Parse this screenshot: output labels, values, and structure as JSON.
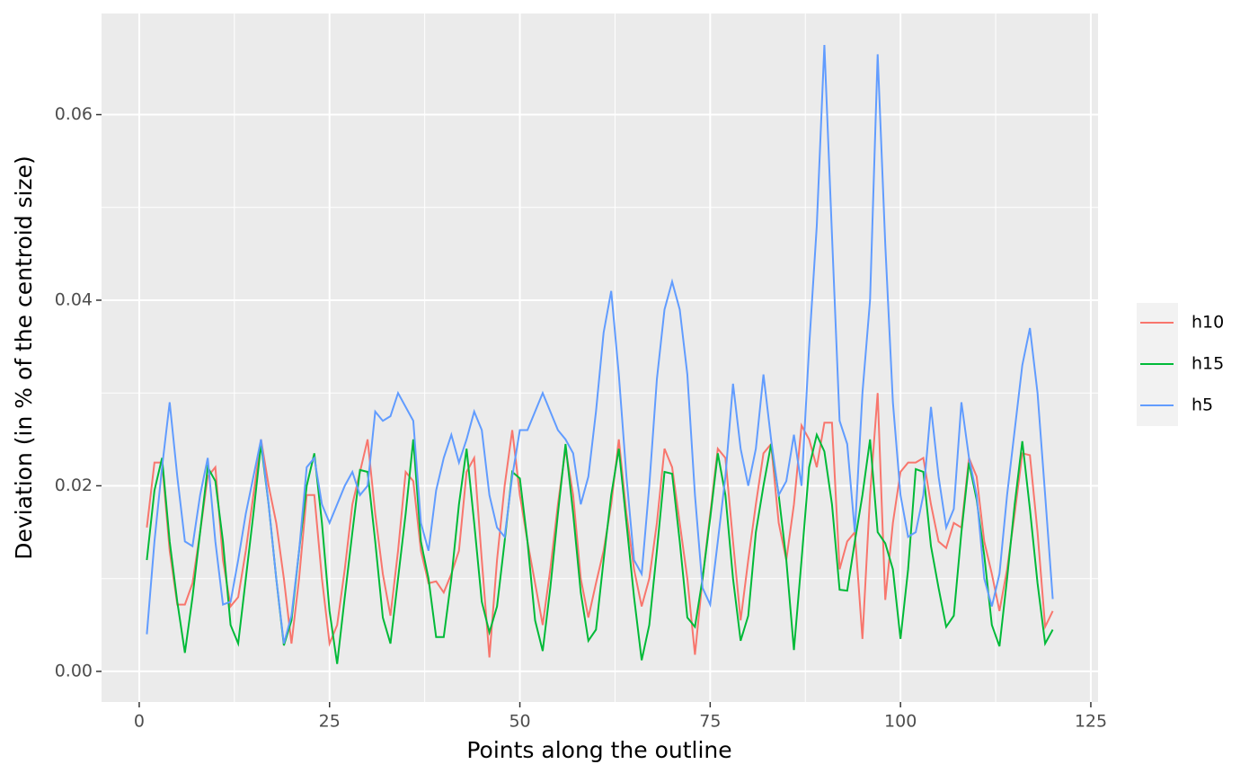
{
  "chart_data": {
    "type": "line",
    "x_label": "Points along the outline",
    "y_label": "Deviation (in % of the centroid size)",
    "x": [
      1,
      2,
      3,
      4,
      5,
      6,
      7,
      8,
      9,
      10,
      11,
      12,
      13,
      14,
      15,
      16,
      17,
      18,
      19,
      20,
      21,
      22,
      23,
      24,
      25,
      26,
      27,
      28,
      29,
      30,
      31,
      32,
      33,
      34,
      35,
      36,
      37,
      38,
      39,
      40,
      41,
      42,
      43,
      44,
      45,
      46,
      47,
      48,
      49,
      50,
      51,
      52,
      53,
      54,
      55,
      56,
      57,
      58,
      59,
      60,
      61,
      62,
      63,
      64,
      65,
      66,
      67,
      68,
      69,
      70,
      71,
      72,
      73,
      74,
      75,
      76,
      77,
      78,
      79,
      80,
      81,
      82,
      83,
      84,
      85,
      86,
      87,
      88,
      89,
      90,
      91,
      92,
      93,
      94,
      95,
      96,
      97,
      98,
      99,
      100,
      101,
      102,
      103,
      104,
      105,
      106,
      107,
      108,
      109,
      110,
      111,
      112,
      113,
      114,
      115,
      116,
      117,
      118,
      119,
      120
    ],
    "series": [
      {
        "name": "h10",
        "color": "#F8766D",
        "values": [
          0.0155,
          0.0225,
          0.0225,
          0.013,
          0.0072,
          0.0072,
          0.0095,
          0.015,
          0.021,
          0.022,
          0.012,
          0.007,
          0.008,
          0.013,
          0.019,
          0.025,
          0.02,
          0.016,
          0.01,
          0.003,
          0.01,
          0.019,
          0.019,
          0.01,
          0.003,
          0.005,
          0.011,
          0.018,
          0.0215,
          0.025,
          0.017,
          0.0105,
          0.006,
          0.013,
          0.0215,
          0.0205,
          0.013,
          0.0095,
          0.0097,
          0.0085,
          0.0105,
          0.013,
          0.0215,
          0.023,
          0.012,
          0.0015,
          0.012,
          0.02,
          0.026,
          0.019,
          0.014,
          0.0095,
          0.005,
          0.011,
          0.018,
          0.024,
          0.019,
          0.01,
          0.0058,
          0.0095,
          0.013,
          0.018,
          0.025,
          0.017,
          0.011,
          0.007,
          0.01,
          0.016,
          0.024,
          0.022,
          0.016,
          0.01,
          0.0018,
          0.01,
          0.017,
          0.024,
          0.023,
          0.014,
          0.0055,
          0.012,
          0.018,
          0.0235,
          0.0245,
          0.016,
          0.012,
          0.018,
          0.0265,
          0.025,
          0.022,
          0.0268,
          0.0268,
          0.011,
          0.014,
          0.015,
          0.0035,
          0.019,
          0.03,
          0.0077,
          0.016,
          0.0215,
          0.0225,
          0.0225,
          0.023,
          0.018,
          0.014,
          0.0133,
          0.016,
          0.0155,
          0.023,
          0.021,
          0.014,
          0.0105,
          0.0065,
          0.011,
          0.017,
          0.0235,
          0.0233,
          0.015,
          0.0048,
          0.0065
        ]
      },
      {
        "name": "h15",
        "color": "#00BA38",
        "values": [
          0.012,
          0.0195,
          0.023,
          0.014,
          0.0075,
          0.002,
          0.008,
          0.015,
          0.022,
          0.0205,
          0.014,
          0.005,
          0.003,
          0.01,
          0.017,
          0.0245,
          0.018,
          0.01,
          0.0028,
          0.0055,
          0.013,
          0.02,
          0.0235,
          0.016,
          0.0065,
          0.0008,
          0.008,
          0.015,
          0.0217,
          0.0215,
          0.014,
          0.0058,
          0.003,
          0.01,
          0.017,
          0.025,
          0.014,
          0.01,
          0.0037,
          0.0037,
          0.01,
          0.018,
          0.024,
          0.016,
          0.0075,
          0.0042,
          0.007,
          0.014,
          0.0215,
          0.0208,
          0.014,
          0.0055,
          0.0022,
          0.009,
          0.017,
          0.0245,
          0.017,
          0.0085,
          0.0033,
          0.0045,
          0.012,
          0.019,
          0.024,
          0.016,
          0.008,
          0.0012,
          0.005,
          0.013,
          0.0215,
          0.0213,
          0.014,
          0.0058,
          0.0048,
          0.01,
          0.0165,
          0.0235,
          0.019,
          0.01,
          0.0033,
          0.006,
          0.015,
          0.02,
          0.0245,
          0.019,
          0.012,
          0.0023,
          0.012,
          0.022,
          0.0255,
          0.0237,
          0.018,
          0.0088,
          0.0087,
          0.014,
          0.019,
          0.025,
          0.015,
          0.0138,
          0.011,
          0.0035,
          0.011,
          0.0218,
          0.0215,
          0.0135,
          0.009,
          0.0048,
          0.006,
          0.015,
          0.0225,
          0.0185,
          0.0125,
          0.005,
          0.0027,
          0.01,
          0.018,
          0.0248,
          0.0175,
          0.0095,
          0.003,
          0.0045
        ]
      },
      {
        "name": "h5",
        "color": "#619CFF",
        "values": [
          0.004,
          0.014,
          0.022,
          0.029,
          0.021,
          0.014,
          0.0135,
          0.019,
          0.023,
          0.014,
          0.0072,
          0.0075,
          0.012,
          0.017,
          0.021,
          0.025,
          0.018,
          0.01,
          0.003,
          0.006,
          0.013,
          0.022,
          0.023,
          0.018,
          0.016,
          0.018,
          0.02,
          0.0215,
          0.019,
          0.02,
          0.028,
          0.027,
          0.0275,
          0.03,
          0.0285,
          0.027,
          0.016,
          0.013,
          0.0195,
          0.023,
          0.0255,
          0.0225,
          0.025,
          0.028,
          0.026,
          0.019,
          0.0155,
          0.0145,
          0.021,
          0.026,
          0.026,
          0.028,
          0.03,
          0.028,
          0.026,
          0.025,
          0.0235,
          0.018,
          0.021,
          0.028,
          0.0365,
          0.041,
          0.032,
          0.021,
          0.012,
          0.0105,
          0.02,
          0.0315,
          0.039,
          0.042,
          0.039,
          0.032,
          0.019,
          0.009,
          0.0072,
          0.014,
          0.021,
          0.031,
          0.024,
          0.02,
          0.024,
          0.032,
          0.025,
          0.019,
          0.0205,
          0.0255,
          0.02,
          0.035,
          0.048,
          0.0675,
          0.047,
          0.027,
          0.0245,
          0.015,
          0.03,
          0.04,
          0.0665,
          0.046,
          0.029,
          0.019,
          0.0145,
          0.015,
          0.019,
          0.0285,
          0.021,
          0.0155,
          0.0175,
          0.029,
          0.023,
          0.019,
          0.01,
          0.007,
          0.0105,
          0.019,
          0.026,
          0.033,
          0.037,
          0.03,
          0.019,
          0.0078
        ]
      }
    ],
    "xlim": [
      -4.95,
      125.95
    ],
    "ylim": [
      -0.0033,
      0.0709
    ],
    "xticks": [
      0,
      25,
      50,
      75,
      100,
      125
    ],
    "yticks": [
      {
        "value": 0,
        "label": "0.00"
      },
      {
        "value": 0.02,
        "label": "0.02"
      },
      {
        "value": 0.04,
        "label": "0.04"
      },
      {
        "value": 0.06,
        "label": "0.06"
      }
    ],
    "grid": true
  }
}
